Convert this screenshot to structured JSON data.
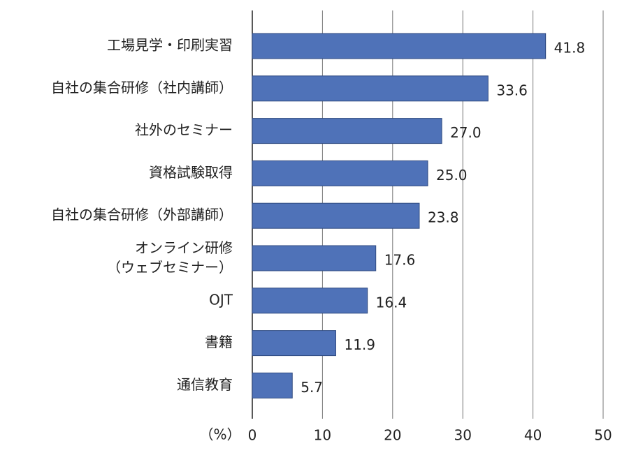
{
  "chart_data": {
    "type": "bar",
    "orientation": "horizontal",
    "categories": [
      "工場見学・印刷実習",
      "自社の集合研修（社内講師）",
      "社外のセミナー",
      "資格試験取得",
      "自社の集合研修（外部講師）",
      "オンライン研修\n（ウェブセミナー）",
      "OJT",
      "書籍",
      "通信教育"
    ],
    "values": [
      41.8,
      33.6,
      27.0,
      25.0,
      23.8,
      17.6,
      16.4,
      11.9,
      5.7
    ],
    "value_labels": [
      "41.8",
      "33.6",
      "27.0",
      "25.0",
      "23.8",
      "17.6",
      "16.4",
      "11.9",
      "5.7"
    ],
    "color": "#4f72b8",
    "xlabel": "（%）",
    "xlim": [
      0,
      50
    ],
    "xticks": [
      0,
      10,
      20,
      30,
      40,
      50
    ],
    "grid": true
  }
}
